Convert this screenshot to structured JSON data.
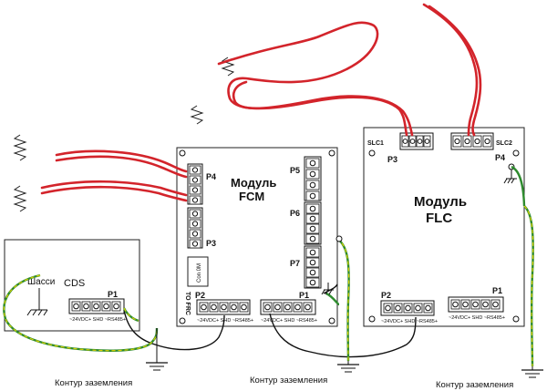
{
  "fcm": {
    "title_line1": "Модуль",
    "title_line2": "FCM",
    "p4": "P4",
    "p3": "P3",
    "p5": "P5",
    "p6": "P6",
    "p7": "P7",
    "p2": "P2",
    "p1": "P1",
    "to_frc": "TO FRC",
    "con_label": "Con 0M",
    "pin_line": "~24VDC+   SHD ~RS485+"
  },
  "flc": {
    "title_line1": "Модуль",
    "title_line2": "FLC",
    "slc1": "SLC1",
    "slc2": "SLC2",
    "p3": "P3",
    "p4": "P4",
    "p2": "P2",
    "p1": "P1",
    "pin_line": "~24VDC+  SHD ~RS485+",
    "pin_line_right": "~24VDC+ SHD ~RS485+"
  },
  "cds": {
    "chassis": "Шасси",
    "name": "CDS",
    "p1": "P1",
    "pin_line": "~24VDC+  SHD ~RS485+"
  },
  "ground_label_1": "Контур заземления",
  "ground_label_2": "Контур заземления",
  "ground_label_3": "Контур заземления"
}
